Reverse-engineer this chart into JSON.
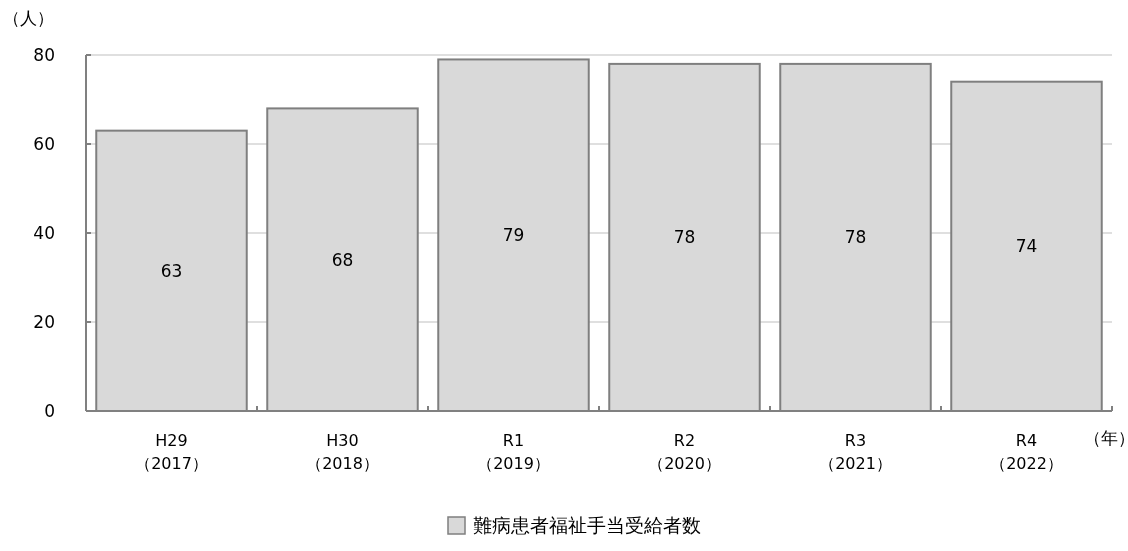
{
  "chart_data": {
    "type": "bar",
    "categories": [
      "H29\n（2017）",
      "H30\n（2018）",
      "R1\n（2019）",
      "R2\n（2020）",
      "R3\n（2021）",
      "R4\n（2022）"
    ],
    "series": [
      {
        "name": "難病患者福祉手当受給者数",
        "color": "#d9d9d9",
        "values": [
          63,
          68,
          79,
          78,
          78,
          74
        ]
      }
    ],
    "ylabel": "（人）",
    "xlabel": "（年）",
    "ylim": [
      0,
      80
    ],
    "yticks": [
      0,
      20,
      40,
      60,
      80
    ],
    "grid": "y",
    "legend": "bottom",
    "data_labels": true
  }
}
